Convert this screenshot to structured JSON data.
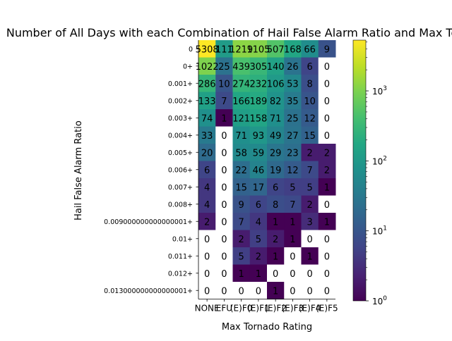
{
  "chart_data": {
    "type": "heatmap",
    "title": "Number of All Days with each Combination of Hail False Alarm Ratio and Max Tornado Rating",
    "xlabel": "Max Tornado Rating",
    "ylabel": "Hail False Alarm Ratio",
    "x_categories": [
      "NONE",
      "EFU",
      "(E)F0",
      "(E)F1",
      "(E)F2",
      "(E)F3",
      "(E)F4",
      "(E)F5"
    ],
    "y_categories": [
      "0",
      "0+",
      "0.001+",
      "0.002+",
      "0.003+",
      "0.004+",
      "0.005+",
      "0.006+",
      "0.007+",
      "0.008+",
      "0.009000000000000001+",
      "0.01+",
      "0.011+",
      "0.012+",
      "0.013000000000000001+"
    ],
    "values": [
      [
        5308,
        111,
        1219,
        1105,
        507,
        168,
        66,
        9
      ],
      [
        1022,
        25,
        439,
        305,
        140,
        26,
        6,
        0
      ],
      [
        286,
        10,
        274,
        232,
        106,
        53,
        8,
        0
      ],
      [
        133,
        7,
        166,
        189,
        82,
        35,
        10,
        0
      ],
      [
        74,
        1,
        121,
        158,
        71,
        25,
        12,
        0
      ],
      [
        33,
        0,
        71,
        93,
        49,
        27,
        15,
        0
      ],
      [
        20,
        0,
        58,
        59,
        29,
        23,
        2,
        2
      ],
      [
        6,
        0,
        22,
        46,
        19,
        12,
        7,
        2
      ],
      [
        4,
        0,
        15,
        17,
        6,
        5,
        5,
        1
      ],
      [
        4,
        0,
        9,
        6,
        8,
        7,
        2,
        0
      ],
      [
        2,
        0,
        7,
        4,
        1,
        1,
        3,
        1
      ],
      [
        0,
        0,
        2,
        5,
        2,
        1,
        0,
        0
      ],
      [
        0,
        0,
        5,
        2,
        1,
        0,
        1,
        0
      ],
      [
        0,
        0,
        1,
        1,
        0,
        0,
        0,
        0
      ],
      [
        0,
        0,
        0,
        0,
        1,
        0,
        0,
        0
      ]
    ],
    "colorbar": {
      "scale": "log",
      "range": [
        1,
        5308
      ],
      "colormap": "viridis",
      "tick_labels": [
        "10^0",
        "10^1",
        "10^2",
        "10^3"
      ]
    },
    "zero_cell_color": "#ffffff",
    "grid": false
  }
}
